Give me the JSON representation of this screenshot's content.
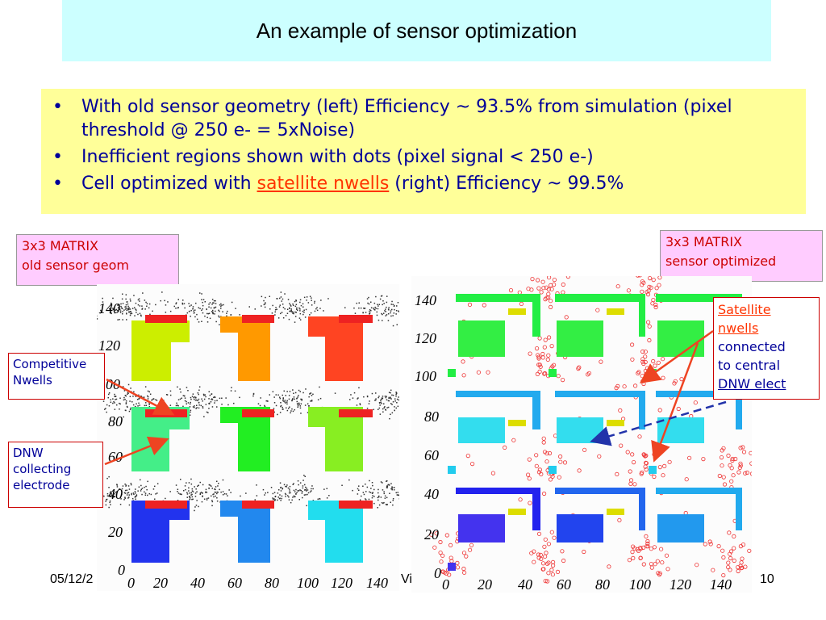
{
  "title": "An example of sensor optimization",
  "bullets": [
    {
      "pre": "With old sensor geometry (left) Efficiency ~ 93.5% from simulation (pixel threshold @ 250 e- = 5xNoise)",
      "link": "",
      "post": ""
    },
    {
      "pre": "Inefficient regions shown with dots (pixel signal < 250 e-)",
      "link": "",
      "post": ""
    },
    {
      "pre": "Cell optimized with ",
      "link": "satellite nwells",
      "post": " (right) Efficiency ~ 99.5%"
    }
  ],
  "bullet_symbol": "•",
  "left_label": {
    "line1": "3x3 MATRIX",
    "line2": "old sensor geom"
  },
  "right_label": {
    "line1": "3x3 MATRIX",
    "line2": "sensor optimized"
  },
  "callouts": {
    "competitive": {
      "line1": "Competitive",
      "line2": "Nwells"
    },
    "dnw": {
      "line1": "DNW",
      "line2": "collecting",
      "line3": "electrode"
    },
    "satellite": {
      "link": "Satellite nwells",
      "rest1": "connected",
      "rest2": "to central",
      "rest3": "DNW elect"
    }
  },
  "left_plot": {
    "y_ticks": [
      "140",
      "120",
      "100",
      "80",
      "60",
      "40",
      "20",
      "0"
    ],
    "x_ticks": [
      "0",
      "20",
      "40",
      "60",
      "80",
      "100",
      "120",
      "140"
    ]
  },
  "right_plot": {
    "y_ticks": [
      "140",
      "120",
      "100",
      "80",
      "60",
      "40",
      "20",
      "0"
    ],
    "x_ticks": [
      "0",
      "20",
      "40",
      "60",
      "80",
      "100",
      "120",
      "140"
    ]
  },
  "footer": {
    "date": "05/12/2",
    "center": "Vi",
    "page": "10"
  },
  "colors": {
    "title_bg": "#ccffff",
    "bullet_bg": "#ffff99",
    "bullet_text": "#000099",
    "link": "#ff3300",
    "label_bg": "#ffccff"
  }
}
